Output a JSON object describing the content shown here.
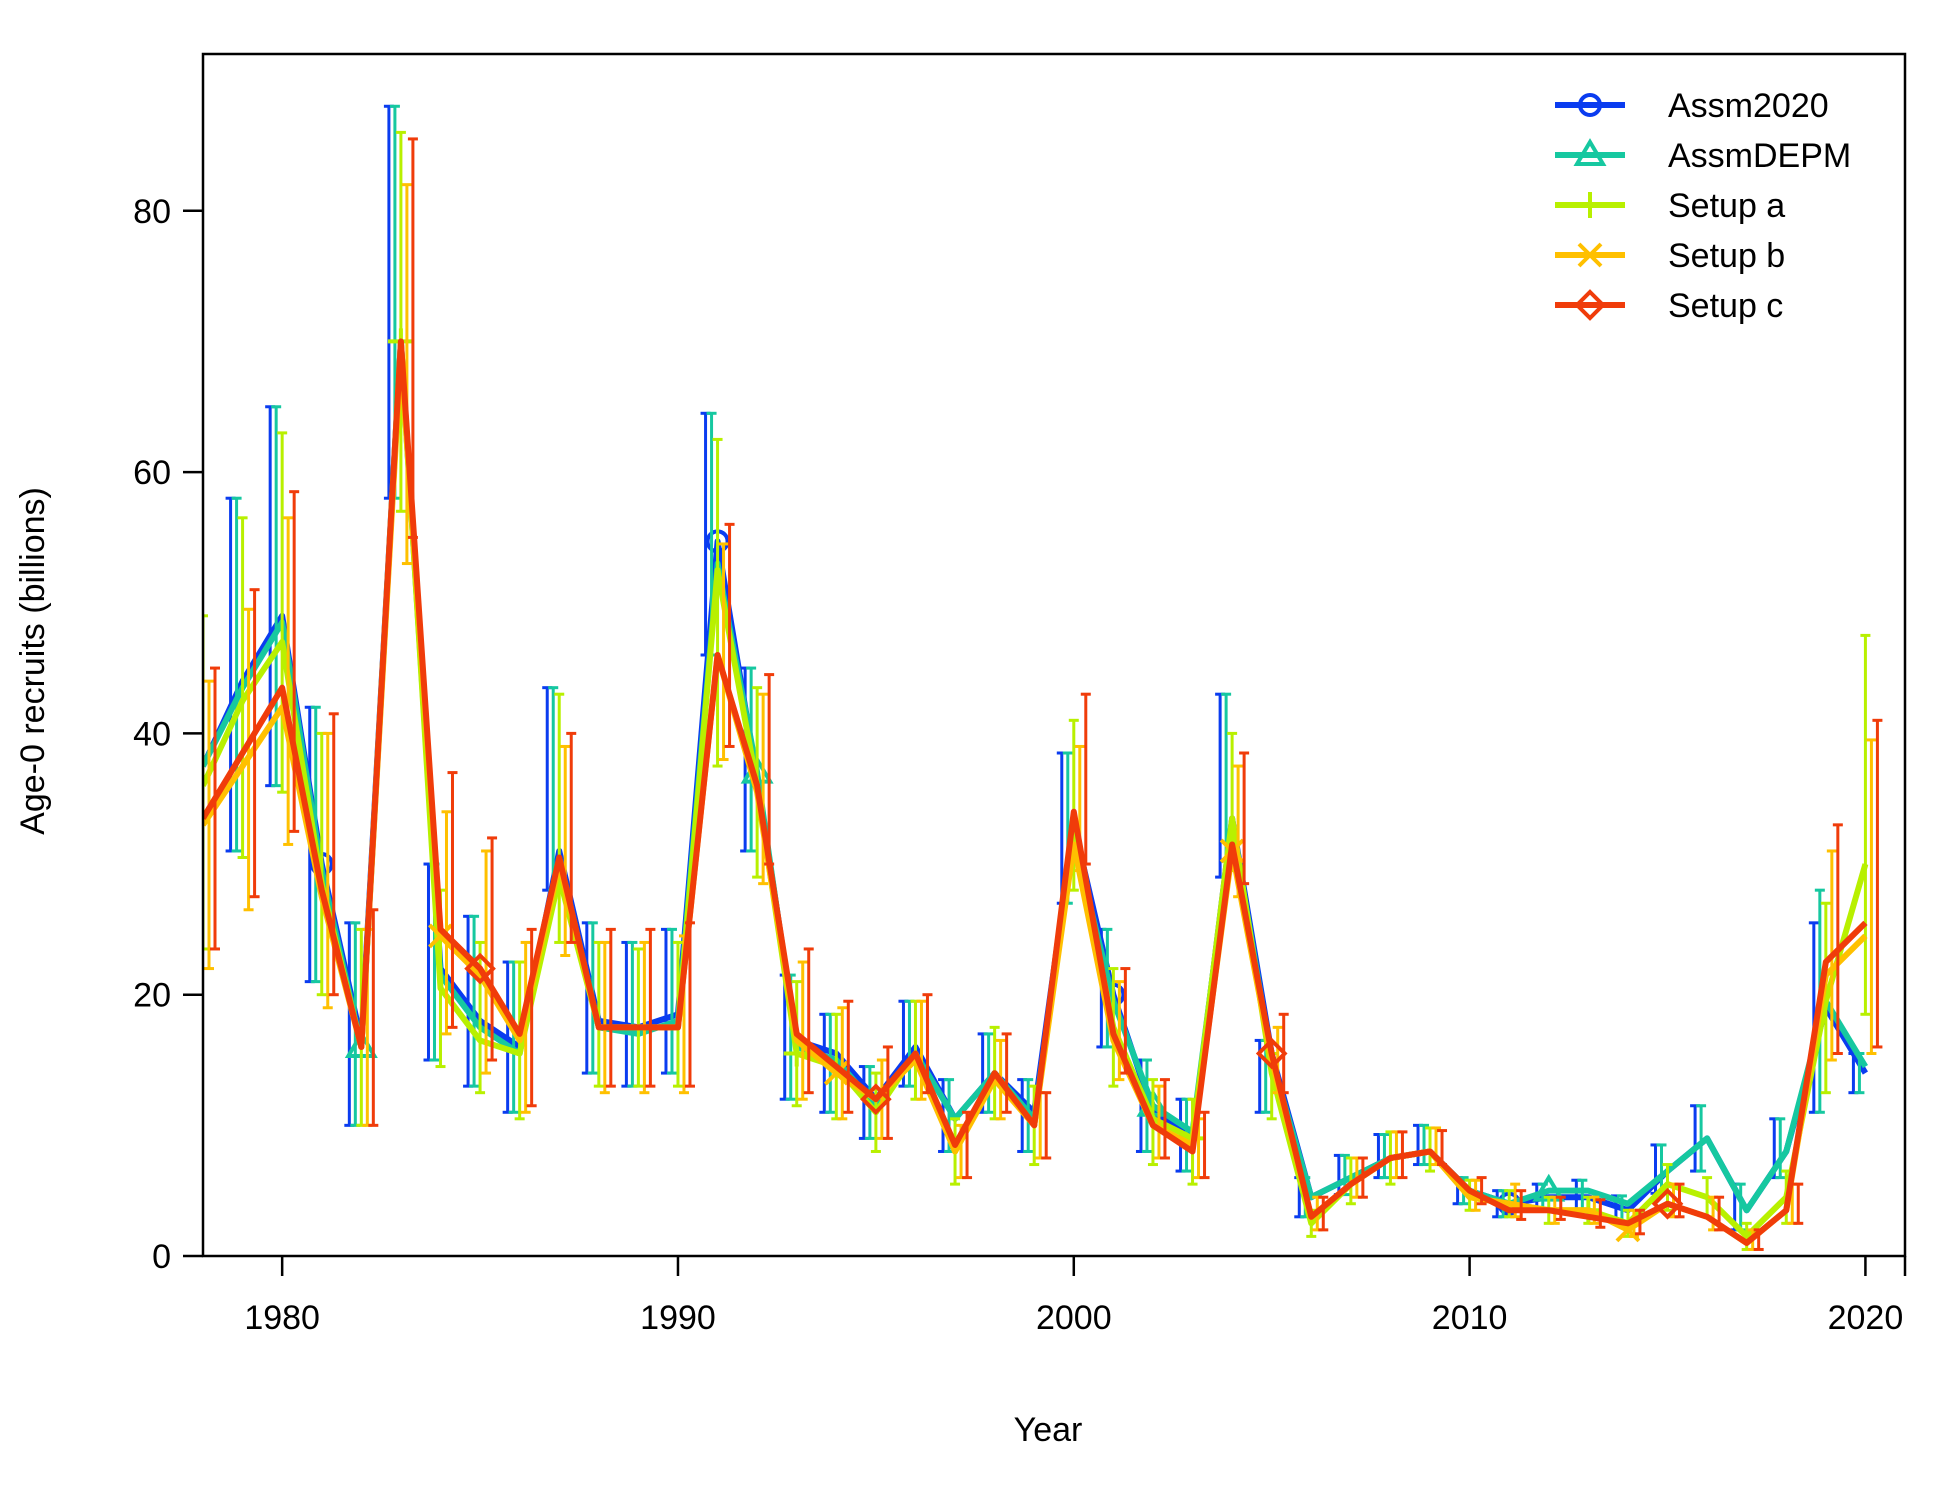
{
  "chart_data": {
    "type": "line",
    "title": "",
    "xlabel": "Year",
    "ylabel": "Age-0 recruits (billions)",
    "xlim": [
      1978,
      2021
    ],
    "ylim": [
      0,
      92
    ],
    "x_ticks": [
      1980,
      1990,
      2000,
      2010,
      2020
    ],
    "y_ticks": [
      0,
      20,
      40,
      60,
      80
    ],
    "legend_position": "top-right",
    "x": [
      1978,
      1979,
      1980,
      1981,
      1982,
      1983,
      1984,
      1985,
      1986,
      1987,
      1988,
      1989,
      1990,
      1991,
      1992,
      1993,
      1994,
      1995,
      1996,
      1997,
      1998,
      1999,
      2000,
      2001,
      2002,
      2003,
      2004,
      2005,
      2006,
      2007,
      2008,
      2009,
      2010,
      2011,
      2012,
      2013,
      2014,
      2015,
      2016,
      2017,
      2018,
      2019,
      2020
    ],
    "series": [
      {
        "name": "Assm2020",
        "color": "#0a3cf0",
        "marker": "circle",
        "marker_every": 10,
        "marker_offset": 3,
        "values": [
          37.5,
          44,
          49,
          30,
          16.5,
          70,
          22,
          18,
          16,
          31,
          18,
          17.5,
          18.5,
          54.7,
          36.5,
          16.5,
          15.5,
          12,
          16,
          10.5,
          14,
          11,
          33,
          20,
          11,
          9,
          33.5,
          15.5,
          4.5,
          6,
          7.5,
          8,
          5,
          4,
          4.5,
          4.5,
          3.5,
          6.5,
          9,
          3.5,
          8,
          19,
          14
        ],
        "lower": [
          25,
          31,
          36,
          21,
          10,
          58,
          15,
          13,
          11,
          28,
          14,
          13,
          14,
          46,
          31,
          12,
          11,
          9,
          13,
          8,
          11,
          8,
          27,
          16,
          8,
          6.5,
          29,
          11,
          3,
          4.7,
          6,
          7,
          4,
          3,
          3.5,
          3.5,
          2.5,
          4.8,
          6.5,
          2,
          6,
          11,
          12.5
        ],
        "upper": [
          50,
          58,
          65,
          42,
          25.5,
          88,
          30,
          26,
          22.5,
          43.5,
          25.5,
          24,
          25,
          64.5,
          45,
          21.5,
          18.5,
          14.5,
          19.5,
          13.5,
          17,
          13.5,
          38.5,
          25,
          15,
          12,
          43,
          16.5,
          6,
          7.7,
          9.3,
          10,
          6,
          5,
          5.5,
          5.8,
          4.6,
          8.5,
          11.5,
          5.5,
          10.5,
          25.5,
          15.5
        ]
      },
      {
        "name": "AssmDEPM",
        "color": "#16c8a0",
        "marker": "triangle",
        "marker_every": 10,
        "marker_offset": 4,
        "values": [
          37.5,
          43.5,
          48.5,
          29.5,
          16,
          69.5,
          21.5,
          17.5,
          15.5,
          30.5,
          17.5,
          17,
          18,
          53,
          37,
          16,
          15,
          11.5,
          15.5,
          10.5,
          14,
          10.5,
          32,
          19.5,
          11.5,
          9.5,
          33,
          15,
          4.5,
          6,
          7.5,
          8,
          5,
          4,
          5,
          5,
          4,
          6.5,
          9,
          3.5,
          8,
          19.5,
          14.5
        ],
        "lower": [
          25,
          31,
          36,
          21,
          10,
          58,
          15,
          13,
          11,
          28,
          14,
          13,
          14,
          46,
          31,
          12,
          11,
          9,
          13,
          8,
          11,
          8,
          27,
          16,
          8,
          6.5,
          29,
          11,
          3,
          4.7,
          6,
          7,
          4,
          3,
          3.5,
          3.5,
          2.5,
          4.8,
          6.5,
          2,
          6,
          11,
          12.5
        ],
        "upper": [
          50,
          58,
          65,
          42,
          25.5,
          88,
          30,
          26,
          22.5,
          43.5,
          25.5,
          24,
          25,
          64.5,
          45,
          21.5,
          18.5,
          14.5,
          19.5,
          13.5,
          17,
          13.5,
          38.5,
          25,
          15,
          12,
          43,
          16.5,
          6,
          7.7,
          9.3,
          10,
          6,
          5,
          5.5,
          5.8,
          4.6,
          8.5,
          11.5,
          5.5,
          10.5,
          28,
          15.5
        ]
      },
      {
        "name": "Setup a",
        "color": "#b8f000",
        "marker": "plus",
        "marker_every": 10,
        "marker_offset": 5,
        "values": [
          36,
          42.5,
          47,
          28.5,
          16,
          70,
          20.5,
          16.5,
          15.5,
          29,
          17.5,
          17.5,
          17.5,
          52.5,
          36,
          15.5,
          14.5,
          11,
          15.5,
          8,
          14,
          10,
          32.5,
          17.5,
          10.5,
          9,
          33.5,
          14,
          2.5,
          5.5,
          7.5,
          8,
          4.5,
          4,
          3.5,
          3.5,
          2.5,
          5.5,
          4.5,
          1.5,
          4.5,
          19.5,
          30
        ],
        "lower": [
          23.5,
          30.5,
          35.5,
          20,
          10,
          57,
          14.5,
          12.5,
          10.5,
          24,
          13,
          13,
          13,
          37.5,
          29,
          11.5,
          10.5,
          8,
          12,
          5.5,
          10.5,
          7,
          28,
          13,
          7,
          5.5,
          29.5,
          10.5,
          1.5,
          4,
          5.5,
          6.5,
          3.5,
          3,
          2.5,
          2.5,
          1.5,
          3.5,
          3,
          0.5,
          2.5,
          12.5,
          18.5
        ],
        "upper": [
          49,
          56.5,
          63,
          40,
          25,
          86,
          28,
          24,
          22.5,
          43,
          24,
          23.5,
          24,
          62.5,
          43.5,
          21,
          18.5,
          14,
          19.5,
          10.5,
          17.5,
          13,
          41,
          22,
          13.5,
          12,
          40,
          15.5,
          3.5,
          7.5,
          9.5,
          9.8,
          5.8,
          5,
          4.5,
          4.5,
          3.5,
          7,
          6,
          2.5,
          6.5,
          27,
          47.5
        ]
      },
      {
        "name": "Setup b",
        "color": "#ffc000",
        "marker": "x",
        "marker_every": 10,
        "marker_offset": 6,
        "values": [
          33,
          37.5,
          42,
          27.5,
          16,
          69,
          24.5,
          21.5,
          16.5,
          30,
          17.5,
          17.5,
          17.5,
          46,
          35.5,
          16.5,
          14,
          12,
          15,
          8,
          13.5,
          10,
          31.5,
          16.5,
          10,
          8.5,
          31,
          15,
          3,
          5.5,
          7.5,
          8,
          4.5,
          4,
          3.5,
          3.5,
          2,
          4,
          3,
          1,
          3.5,
          21.5,
          24.5
        ],
        "lower": [
          22,
          26.5,
          31.5,
          19,
          10,
          53,
          17,
          14,
          11,
          23,
          12.5,
          12.5,
          12.5,
          38,
          28.5,
          12,
          10.5,
          9,
          12,
          6,
          10.5,
          7.5,
          29.5,
          13.5,
          7.5,
          6,
          27.5,
          12.5,
          2,
          4.5,
          6,
          7,
          3.5,
          3,
          2.5,
          2.5,
          1.5,
          3,
          2,
          0.5,
          2.5,
          15,
          15.5
        ],
        "upper": [
          44,
          49.5,
          56.5,
          40,
          25,
          82,
          34,
          31,
          24,
          39,
          24,
          24,
          24.5,
          54.5,
          43,
          22.5,
          19,
          15,
          19.5,
          10,
          16.5,
          12.5,
          39,
          21,
          13,
          10.5,
          37.5,
          17.5,
          4.5,
          7.5,
          9.5,
          9.8,
          5.8,
          5.5,
          4.5,
          4.5,
          3.5,
          5.5,
          4.5,
          2,
          5.5,
          31,
          39.5
        ]
      },
      {
        "name": "Setup c",
        "color": "#f03c0a",
        "marker": "diamond",
        "marker_every": 10,
        "marker_offset": 7,
        "values": [
          33.5,
          38.5,
          43.5,
          28,
          16,
          70,
          25,
          22,
          17,
          30.5,
          17.5,
          17.5,
          17.5,
          46,
          36,
          17,
          14.5,
          12,
          15.5,
          8.5,
          14,
          10,
          34,
          17,
          10,
          8,
          31.5,
          15.5,
          3,
          5.5,
          7.5,
          8,
          5,
          3.5,
          3.5,
          3,
          2.5,
          4,
          3,
          1,
          3.5,
          22.5,
          25.5
        ],
        "lower": [
          23.5,
          27.5,
          32.5,
          20,
          10,
          55,
          17.5,
          15,
          11.5,
          24,
          13,
          13,
          13,
          39,
          30,
          12.5,
          11,
          9,
          12.5,
          6,
          11,
          7.5,
          30,
          14,
          7.5,
          6,
          28.5,
          12.5,
          2,
          4.5,
          6,
          7,
          4,
          2.8,
          2.8,
          2.2,
          1.7,
          3,
          2,
          0.5,
          2.5,
          15.5,
          16
        ],
        "upper": [
          45,
          51,
          58.5,
          41.5,
          26.5,
          85.5,
          37,
          32,
          25,
          40,
          25,
          25,
          25.5,
          56,
          44.5,
          23.5,
          19.5,
          16,
          20,
          11,
          17,
          12.5,
          43,
          22,
          13.5,
          11,
          38.5,
          18.5,
          4.5,
          7.5,
          9.5,
          9.6,
          6,
          5,
          4.5,
          4.3,
          3.5,
          5.5,
          4.5,
          2,
          5.5,
          33,
          41
        ]
      }
    ]
  }
}
